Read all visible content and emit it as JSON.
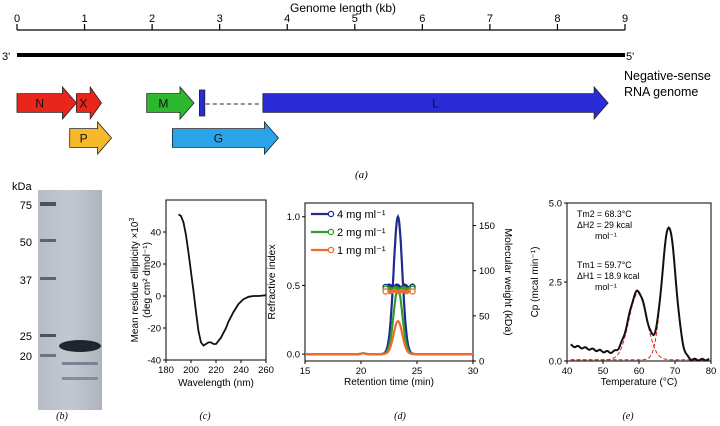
{
  "genome": {
    "axis_title": "Genome length (kb)",
    "axis_ticks": [
      "0",
      "1",
      "2",
      "3",
      "4",
      "5",
      "6",
      "7",
      "8",
      "9"
    ],
    "end_3": "3'",
    "end_5": "5'",
    "label_line1": "Negative-sense",
    "label_line2": "RNA genome",
    "genes": {
      "N": {
        "label": "N",
        "start": 0.0,
        "end": 0.88,
        "color": "#e8261c"
      },
      "X": {
        "label": "X",
        "start": 0.88,
        "end": 1.25,
        "color": "#e8261c"
      },
      "M": {
        "label": "M",
        "start": 1.92,
        "end": 2.62,
        "color": "#2db82d"
      },
      "small": {
        "label": "",
        "start": 2.7,
        "end": 2.78,
        "color": "#2b2bd8"
      },
      "L": {
        "label": "L",
        "start": 3.64,
        "end": 8.75,
        "color": "#2b2bd8"
      },
      "P": {
        "label": "P",
        "start": 0.78,
        "end": 1.4,
        "color": "#f7b82a"
      },
      "G": {
        "label": "G",
        "start": 2.3,
        "end": 3.87,
        "color": "#2aa4e8"
      }
    },
    "panel_label": "(a)"
  },
  "gel": {
    "unit": "kDa",
    "markers": [
      "75",
      "50",
      "37",
      "25",
      "20"
    ],
    "panel_label": "(b)"
  },
  "chart_data": [
    {
      "id": "cd",
      "type": "line",
      "xlabel": "Wavelength (nm)",
      "ylabel_line1": "Mean residue ellipticity ×10",
      "ylabel_sup": "3",
      "ylabel_line2": "(deg cm² dmol⁻¹)",
      "xlim": [
        180,
        260
      ],
      "ylim": [
        -40,
        60
      ],
      "xticks": [
        "180",
        "200",
        "220",
        "240",
        "260"
      ],
      "yticks": [
        "-40",
        "-20",
        "0",
        "20",
        "40"
      ],
      "x": [
        190,
        192,
        194,
        196,
        198,
        200,
        202,
        204,
        206,
        208,
        210,
        212,
        214,
        216,
        218,
        220,
        222,
        224,
        226,
        228,
        230,
        234,
        238,
        242,
        246,
        250,
        254,
        258,
        260
      ],
      "y": [
        51,
        50,
        46,
        38,
        27,
        15,
        3,
        -10,
        -22,
        -29,
        -31,
        -30,
        -29,
        -29,
        -30,
        -30,
        -28,
        -26,
        -23,
        -20,
        -16,
        -10,
        -5,
        -2,
        -0.5,
        0,
        0,
        0.3,
        0.5
      ],
      "panel_label": "(c)"
    },
    {
      "id": "sec",
      "type": "line",
      "xlabel": "Retention time (min)",
      "ylabel": "Refractive index",
      "ylabel_right": "Molecular weight (kDa)",
      "xlim": [
        15,
        30
      ],
      "ylim": [
        -0.05,
        1.1
      ],
      "ylim_right": [
        0,
        175
      ],
      "xticks": [
        "15",
        "20",
        "25",
        "30"
      ],
      "yticks": [
        "0.0",
        "0.5",
        "1.0"
      ],
      "yticks_right": [
        "0",
        "50",
        "100",
        "150"
      ],
      "series": [
        {
          "name": "4 mg ml⁻¹",
          "color": "#1f2a8c",
          "peak": 1.0,
          "center": 23.3,
          "width": 0.55
        },
        {
          "name": "2 mg ml⁻¹",
          "color": "#2e9c2e",
          "peak": 0.48,
          "center": 23.3,
          "width": 0.55
        },
        {
          "name": "1 mg ml⁻¹",
          "color": "#f06a2a",
          "peak": 0.24,
          "center": 23.3,
          "width": 0.55
        }
      ],
      "mw_values": [
        82,
        80,
        77
      ],
      "mw_range": [
        22.2,
        24.6
      ],
      "panel_label": "(d)"
    },
    {
      "id": "dsc",
      "type": "line",
      "xlabel": "Temperature (°C)",
      "ylabel": "Cp (mcal min⁻¹)",
      "xlim": [
        40,
        80
      ],
      "ylim": [
        0,
        5
      ],
      "xticks": [
        "40",
        "50",
        "60",
        "70",
        "80"
      ],
      "yticks": [
        "0.0",
        "2.5",
        "5.0"
      ],
      "peaks": [
        {
          "center": 59.7,
          "height": 2.1,
          "width": 3.5
        },
        {
          "center": 68.3,
          "height": 4.2,
          "width": 2.7
        }
      ],
      "baseline": 0.45,
      "annotation_tm2": "Tm2 = 68.3°C",
      "annotation_h2_line1": "ΔH2 = 29 kcal",
      "annotation_h2_line2": "mol⁻¹",
      "annotation_tm1": "Tm1 = 59.7°C",
      "annotation_h1_line1": "ΔH1 = 18.9 kcal",
      "annotation_h1_line2": "mol⁻¹",
      "panel_label": "(e)"
    }
  ],
  "colors": {
    "black": "#111111",
    "fit": "#e8261c"
  }
}
